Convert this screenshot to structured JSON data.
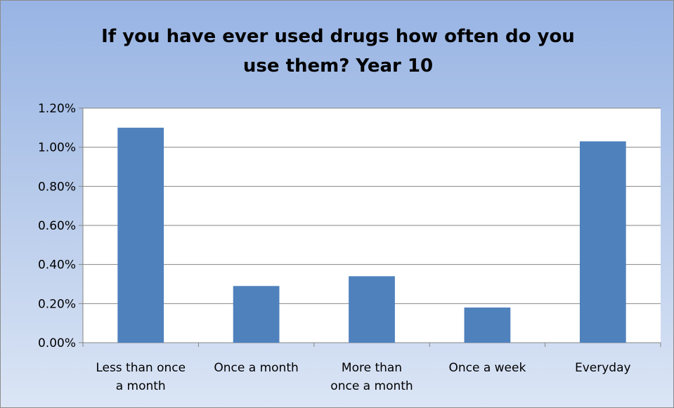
{
  "chart_data": {
    "type": "bar",
    "title": "If you have ever used drugs how often do you use them? Year 10",
    "title_lines": [
      "If you have ever used drugs how often do you",
      "use them? Year 10"
    ],
    "categories": [
      "Less than once a month",
      "Once a month",
      "More than once a month",
      "Once a week",
      "Everyday"
    ],
    "category_lines": [
      [
        "Less than once",
        "a month"
      ],
      [
        "Once a month"
      ],
      [
        "More than",
        "once a month"
      ],
      [
        "Once a week"
      ],
      [
        "Everyday"
      ]
    ],
    "values": [
      1.1,
      0.29,
      0.34,
      0.18,
      1.03
    ],
    "ylim": [
      0,
      1.2
    ],
    "yticks": [
      0,
      0.2,
      0.4,
      0.6,
      0.8,
      1.0,
      1.2
    ],
    "ytick_labels": [
      "0.00%",
      "0.20%",
      "0.40%",
      "0.60%",
      "0.80%",
      "1.00%",
      "1.20%"
    ],
    "y_unit": "percent",
    "xlabel": "",
    "ylabel": "",
    "grid": true,
    "legend": "none",
    "colors": {
      "bar": "#4f81bd",
      "grid": "#868686",
      "background_top": "#98b4e4",
      "background_bottom": "#dbe5f5",
      "plot_area": "#ffffff"
    }
  }
}
